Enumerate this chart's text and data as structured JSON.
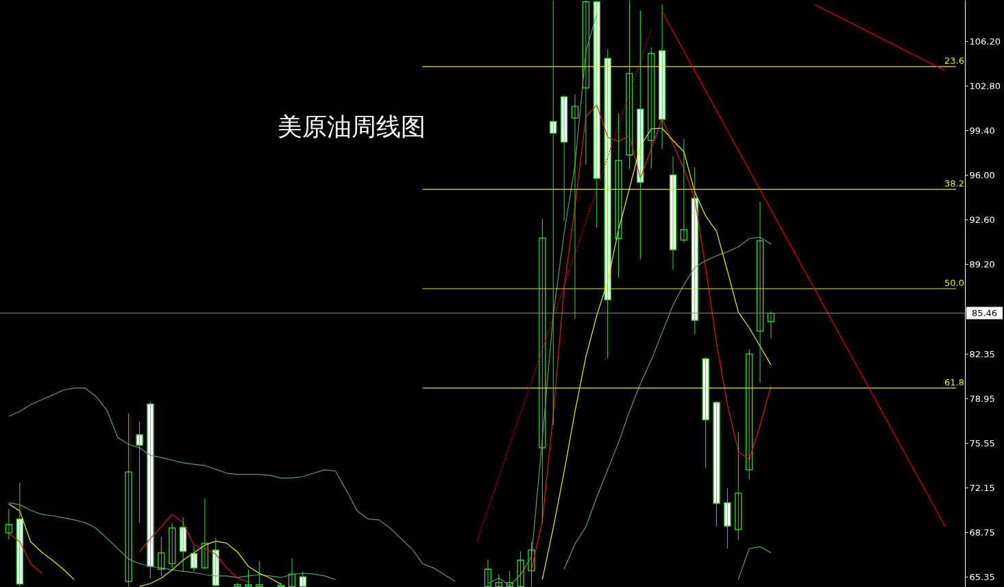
{
  "chart_data": {
    "type": "candlestick",
    "title": "美原油周线图",
    "categories": [
      null,
      null,
      null,
      null,
      null,
      null,
      null,
      null,
      null,
      null,
      null,
      null,
      null,
      null,
      null,
      null,
      null,
      null,
      null,
      null,
      null,
      null,
      null,
      null,
      null,
      null,
      null,
      null,
      null,
      null,
      null,
      null,
      null,
      null,
      null,
      null,
      null,
      null,
      null,
      null,
      null,
      null,
      null,
      null,
      null,
      null,
      null,
      null,
      null,
      null,
      null,
      null,
      null,
      null,
      null,
      null,
      null,
      null,
      null,
      null,
      null,
      null,
      null,
      null,
      null,
      null,
      null,
      null,
      null,
      null,
      null,
      null,
      null,
      null,
      null,
      null,
      null,
      null,
      null,
      null,
      null,
      null,
      null,
      null,
      null,
      null,
      null,
      null
    ],
    "series": [
      {
        "type": "line",
        "color": "#5f9a70",
        "values": [
          77.59,
          77.96,
          78.48,
          78.85,
          79.21,
          79.58,
          79.74,
          79.74,
          79.11,
          78.06,
          75.97,
          75.45,
          75.19,
          74.61,
          74.45,
          74.24,
          74.04,
          73.93,
          73.83,
          73.56,
          73.25,
          73.15,
          73.15,
          73.15,
          73.09,
          72.88,
          72.88,
          72.99,
          73.25,
          73.51,
          73.41,
          71.94,
          70.37,
          69.75,
          69.69,
          69.07,
          68.28,
          67.5,
          66.35,
          66.03,
          65.51,
          64.99,
          null,
          null,
          64.83,
          65.25,
          64.67,
          65.51,
          66.87,
          75.87,
          85.29,
          91.56,
          96.79,
          105.42,
          108.29,
          null,
          null,
          null,
          null,
          null,
          null,
          null,
          null,
          null,
          null,
          null,
          null,
          null,
          null,
          null,
          null,
          null,
          null,
          null,
          null,
          null,
          null,
          null,
          null,
          null,
          null,
          null,
          null,
          null,
          null,
          null,
          null,
          null
        ]
      },
      {
        "type": "line",
        "color": "#5f9a70",
        "values": [
          71.0,
          70.84,
          70.43,
          70.11,
          70.01,
          69.85,
          69.69,
          69.48,
          69.07,
          68.28,
          67.5,
          66.71,
          66.35,
          66.14,
          66.03,
          65.88,
          65.77,
          65.67,
          65.51,
          65.41,
          65.41,
          65.3,
          65.41,
          65.51,
          65.41,
          65.3,
          65.51,
          65.62,
          65.56,
          65.41,
          65.14,
          null,
          null,
          null,
          null,
          null,
          null,
          null,
          null,
          null,
          null,
          null,
          null,
          null,
          null,
          null,
          null,
          null,
          null,
          null,
          null,
          65.93,
          67.86,
          69.17,
          71.42,
          73.51,
          75.6,
          77.96,
          80.05,
          81.88,
          83.97,
          86.06,
          87.63,
          88.94,
          89.46,
          89.83,
          90.14,
          90.51,
          91.14,
          91.24,
          90.72,
          null,
          null,
          null,
          null,
          null,
          null,
          null,
          null,
          null,
          null,
          null,
          null,
          null,
          null,
          null,
          null,
          null
        ]
      },
      {
        "type": "line",
        "color": "#5f9a70",
        "values": [
          null,
          null,
          null,
          null,
          null,
          null,
          null,
          null,
          null,
          null,
          null,
          null,
          null,
          null,
          null,
          null,
          null,
          null,
          null,
          null,
          null,
          null,
          null,
          null,
          null,
          null,
          null,
          null,
          null,
          null,
          null,
          null,
          null,
          null,
          null,
          null,
          null,
          null,
          null,
          null,
          null,
          null,
          null,
          null,
          null,
          null,
          null,
          null,
          null,
          null,
          null,
          null,
          null,
          null,
          null,
          null,
          null,
          null,
          null,
          null,
          null,
          null,
          null,
          null,
          null,
          null,
          null,
          65.14,
          67.5,
          67.65,
          67.18,
          null,
          null,
          null,
          null,
          null,
          null,
          null,
          null,
          null,
          null,
          null,
          null,
          null,
          null,
          null,
          null,
          null
        ]
      },
      {
        "type": "line",
        "color": "#d42020",
        "values": [
          68.65,
          68.02,
          66.35,
          65.62,
          null,
          null,
          null,
          null,
          null,
          null,
          null,
          null,
          67.24,
          68.28,
          69.17,
          70.11,
          69.48,
          67.76,
          67.5,
          67.08,
          66.03,
          65.25,
          64.94,
          null,
          null,
          null,
          null,
          null,
          null,
          null,
          null,
          null,
          null,
          null,
          null,
          null,
          null,
          null,
          null,
          null,
          null,
          null,
          null,
          null,
          null,
          null,
          null,
          null,
          65.93,
          69.59,
          77.7,
          87.37,
          93.65,
          100.45,
          101.34,
          98.88,
          98.56,
          98.98,
          95.74,
          97.99,
          100.29,
          98.35,
          96.47,
          94.17,
          88.94,
          83.19,
          78.48,
          74.92,
          74.3,
          76.91,
          79.89,
          null,
          null,
          null,
          null,
          null,
          null,
          null,
          null,
          null,
          null,
          null,
          null,
          null,
          null,
          null,
          null,
          null
        ]
      },
      {
        "type": "line",
        "color": "#f0f020",
        "values": [
          70.9,
          70.37,
          68.02,
          67.24,
          66.61,
          65.93,
          65.14,
          null,
          null,
          null,
          null,
          null,
          64.62,
          64.83,
          65.25,
          65.88,
          66.61,
          67.18,
          67.76,
          68.07,
          67.91,
          67.24,
          66.14,
          65.62,
          65.25,
          64.78,
          null,
          null,
          null,
          null,
          null,
          null,
          null,
          null,
          null,
          null,
          null,
          null,
          null,
          null,
          null,
          null,
          null,
          null,
          null,
          null,
          null,
          null,
          null,
          65.14,
          69.07,
          73.35,
          77.96,
          82.14,
          85.28,
          87.89,
          91.82,
          94.96,
          98.2,
          99.51,
          99.56,
          98.62,
          97.78,
          94.69,
          92.86,
          91.71,
          88.68,
          85.54,
          84.34,
          82.93,
          81.51,
          null,
          null,
          null,
          null,
          null,
          null,
          null,
          null,
          null,
          null,
          null,
          null,
          null,
          null,
          null,
          null,
          null
        ]
      },
      {
        "type": "line",
        "name": "23.6",
        "color": "#e8e840",
        "values": [
          null,
          null,
          null,
          null,
          null,
          null,
          null,
          null,
          null,
          null,
          null,
          null,
          null,
          null,
          null,
          null,
          null,
          null,
          null,
          null,
          null,
          null,
          null,
          null,
          null,
          null,
          null,
          null,
          null,
          null,
          null,
          null,
          null,
          null,
          null,
          null,
          null,
          null,
          104.26,
          104.26,
          104.26,
          104.26,
          104.26,
          104.26,
          104.26,
          104.26,
          104.26,
          104.26,
          104.26,
          104.26,
          104.26,
          104.26,
          104.26,
          104.26,
          104.26,
          104.26,
          104.26,
          104.26,
          104.26,
          104.26,
          104.26,
          104.26,
          104.26,
          104.26,
          104.26,
          104.26,
          104.26,
          104.26,
          104.26,
          104.26,
          104.26,
          104.26,
          104.26,
          104.26,
          104.26,
          104.26,
          104.26,
          104.26,
          104.26,
          104.26,
          104.26,
          104.26,
          104.26,
          104.26,
          104.26,
          104.26,
          104.26,
          104.26
        ]
      },
      {
        "type": "line",
        "name": "38.2",
        "color": "#e8e840",
        "values": [
          null,
          null,
          null,
          null,
          null,
          null,
          null,
          null,
          null,
          null,
          null,
          null,
          null,
          null,
          null,
          null,
          null,
          null,
          null,
          null,
          null,
          null,
          null,
          null,
          null,
          null,
          null,
          null,
          null,
          null,
          null,
          null,
          null,
          null,
          null,
          null,
          null,
          null,
          94.9,
          94.9,
          94.9,
          94.9,
          94.9,
          94.9,
          94.9,
          94.9,
          94.9,
          94.9,
          94.9,
          94.9,
          94.9,
          94.9,
          94.9,
          94.9,
          94.9,
          94.9,
          94.9,
          94.9,
          94.9,
          94.9,
          94.9,
          94.9,
          94.9,
          94.9,
          94.9,
          94.9,
          94.9,
          94.9,
          94.9,
          94.9,
          94.9,
          94.9,
          94.9,
          94.9,
          94.9,
          94.9,
          94.9,
          94.9,
          94.9,
          94.9,
          94.9,
          94.9,
          94.9,
          94.9,
          94.9,
          94.9,
          94.9,
          94.9
        ]
      },
      {
        "type": "line",
        "name": "50.0",
        "color": "#e8e840",
        "values": [
          null,
          null,
          null,
          null,
          null,
          null,
          null,
          null,
          null,
          null,
          null,
          null,
          null,
          null,
          null,
          null,
          null,
          null,
          null,
          null,
          null,
          null,
          null,
          null,
          null,
          null,
          null,
          null,
          null,
          null,
          null,
          null,
          null,
          null,
          null,
          null,
          null,
          null,
          87.32,
          87.32,
          87.32,
          87.32,
          87.32,
          87.32,
          87.32,
          87.32,
          87.32,
          87.32,
          87.32,
          87.32,
          87.32,
          87.32,
          87.32,
          87.32,
          87.32,
          87.32,
          87.32,
          87.32,
          87.32,
          87.32,
          87.32,
          87.32,
          87.32,
          87.32,
          87.32,
          87.32,
          87.32,
          87.32,
          87.32,
          87.32,
          87.32,
          87.32,
          87.32,
          87.32,
          87.32,
          87.32,
          87.32,
          87.32,
          87.32,
          87.32,
          87.32,
          87.32,
          87.32,
          87.32,
          87.32,
          87.32,
          87.32,
          87.32
        ]
      },
      {
        "type": "line",
        "name": "61.8",
        "color": "#e8e840",
        "values": [
          null,
          null,
          null,
          null,
          null,
          null,
          null,
          null,
          null,
          null,
          null,
          null,
          null,
          null,
          null,
          null,
          null,
          null,
          null,
          null,
          null,
          null,
          null,
          null,
          null,
          null,
          null,
          null,
          null,
          null,
          null,
          null,
          null,
          null,
          null,
          null,
          null,
          null,
          79.74,
          79.74,
          79.74,
          79.74,
          79.74,
          79.74,
          79.74,
          79.74,
          79.74,
          79.74,
          79.74,
          79.74,
          79.74,
          79.74,
          79.74,
          79.74,
          79.74,
          79.74,
          79.74,
          79.74,
          79.74,
          79.74,
          79.74,
          79.74,
          79.74,
          79.74,
          79.74,
          79.74,
          79.74,
          79.74,
          79.74,
          79.74,
          79.74,
          79.74,
          79.74,
          79.74,
          79.74,
          79.74,
          79.74,
          79.74,
          79.74,
          79.74,
          79.74,
          79.74,
          79.74,
          79.74,
          79.74,
          79.74,
          79.74,
          79.74
        ]
      },
      {
        "type": "line",
        "color": "#e00000",
        "line_style": "dotted",
        "values": [
          null,
          null,
          null,
          null,
          null,
          null,
          null,
          null,
          null,
          null,
          null,
          null,
          null,
          null,
          null,
          null,
          null,
          null,
          null,
          null,
          null,
          null,
          null,
          null,
          null,
          null,
          null,
          null,
          null,
          null,
          null,
          null,
          null,
          null,
          null,
          null,
          null,
          null,
          null,
          null,
          null,
          null,
          null,
          68.02,
          null,
          null,
          null,
          null,
          null,
          null,
          null,
          null,
          null,
          null,
          null,
          null,
          null,
          null,
          null,
          107.11,
          null,
          null,
          null,
          null,
          null,
          null,
          null,
          null,
          null,
          null,
          null,
          null,
          null,
          null,
          null,
          null,
          null,
          null,
          null,
          null,
          null,
          null,
          null,
          null,
          null,
          null,
          null,
          null
        ]
      },
      {
        "type": "line",
        "color": "#e00000",
        "values": [
          null,
          null,
          null,
          null,
          null,
          null,
          null,
          null,
          null,
          null,
          null,
          null,
          null,
          null,
          null,
          null,
          null,
          null,
          null,
          null,
          null,
          null,
          null,
          null,
          null,
          null,
          null,
          null,
          null,
          null,
          null,
          null,
          null,
          null,
          null,
          null,
          null,
          null,
          null,
          null,
          null,
          null,
          null,
          null,
          null,
          null,
          null,
          null,
          null,
          null,
          null,
          null,
          null,
          null,
          null,
          null,
          null,
          null,
          null,
          null,
          108.46,
          null,
          null,
          null,
          null,
          null,
          null,
          null,
          null,
          null,
          null,
          null,
          null,
          null,
          null,
          null,
          null,
          null,
          null,
          null,
          null,
          null,
          null,
          null,
          null,
          null,
          69.17,
          null
        ]
      },
      {
        "type": "line",
        "color": "#e00000",
        "values": [
          null,
          null,
          null,
          null,
          null,
          null,
          null,
          null,
          null,
          null,
          null,
          null,
          null,
          null,
          null,
          null,
          null,
          null,
          null,
          null,
          null,
          null,
          null,
          null,
          null,
          null,
          null,
          null,
          null,
          null,
          null,
          null,
          null,
          null,
          null,
          null,
          null,
          null,
          null,
          null,
          null,
          null,
          null,
          null,
          null,
          null,
          null,
          null,
          null,
          null,
          null,
          null,
          null,
          null,
          null,
          null,
          null,
          null,
          null,
          null,
          null,
          null,
          null,
          null,
          null,
          null,
          null,
          null,
          null,
          null,
          null,
          null,
          null,
          null,
          109.0,
          null,
          null,
          null,
          null,
          null,
          null,
          null,
          null,
          null,
          null,
          null,
          103.95,
          null
        ]
      },
      {
        "type": "candlestick",
        "color": "#33dd33",
        "ohlc": [
          [
            68.7,
            70.53,
            68.18,
            69.33
          ],
          [
            69.75,
            72.52,
            64.6,
            64.8
          ],
          null,
          null,
          null,
          null,
          null,
          null,
          null,
          null,
          null,
          [
            64.99,
            77.8,
            64.6,
            73.35
          ],
          [
            76.18,
            77.17,
            69.48,
            75.39
          ],
          [
            78.53,
            78.69,
            65.25,
            66.14
          ],
          [
            65.93,
            68.39,
            65.41,
            67.18
          ],
          [
            66.35,
            69.43,
            66.0,
            69.07
          ],
          [
            69.12,
            69.9,
            65.72,
            67.29
          ],
          [
            67.13,
            67.65,
            65.77,
            66.03
          ],
          [
            66.03,
            71.32,
            65.93,
            67.91
          ],
          [
            67.39,
            68.33,
            64.6,
            64.7
          ],
          null,
          [
            64.6,
            64.9,
            64.6,
            64.75
          ],
          [
            64.6,
            65.88,
            64.6,
            64.75
          ],
          [
            64.6,
            66.56,
            64.6,
            64.75
          ],
          null,
          [
            64.6,
            64.88,
            64.6,
            64.7
          ],
          [
            64.6,
            66.77,
            64.6,
            65.56
          ],
          [
            65.35,
            65.72,
            64.6,
            64.62
          ],
          null,
          null,
          null,
          null,
          null,
          null,
          null,
          null,
          null,
          null,
          null,
          null,
          null,
          null,
          null,
          null,
          [
            64.6,
            66.66,
            64.6,
            65.93
          ],
          [
            64.6,
            65.57,
            64.6,
            64.9
          ],
          [
            64.6,
            65.78,
            64.6,
            64.9
          ],
          [
            64.6,
            67.29,
            64.6,
            66.61
          ],
          [
            65.82,
            68.02,
            64.6,
            67.39
          ],
          [
            75.19,
            92.65,
            69.43,
            91.19
          ],
          [
            100.08,
            109.3,
            76.91,
            99.19
          ],
          [
            101.96,
            102.07,
            92.5,
            98.51
          ],
          [
            100.34,
            102.12,
            85.02,
            101.23
          ],
          [
            102.64,
            109.3,
            96.79,
            109.2
          ],
          [
            109.2,
            109.3,
            91.97,
            95.74
          ],
          [
            104.89,
            105.57,
            82.04,
            86.48
          ],
          [
            91.14,
            100.71,
            88.16,
            97.1
          ],
          [
            97.52,
            109.3,
            96.47,
            103.74
          ],
          [
            101.02,
            108.55,
            89.57,
            95.43
          ],
          [
            98.62,
            105.73,
            96.47,
            105.26
          ],
          [
            105.47,
            108.97,
            97.99,
            100.24
          ],
          [
            96.0,
            97.41,
            88.78,
            90.3
          ],
          [
            91.03,
            98.72,
            90.82,
            91.82
          ],
          [
            94.22,
            96.58,
            83.87,
            84.91
          ],
          [
            81.98,
            82.09,
            73.67,
            77.33
          ],
          [
            78.64,
            78.74,
            69.22,
            70.95
          ],
          [
            71.0,
            72.1,
            67.5,
            69.22
          ],
          [
            68.96,
            76.39,
            68.18,
            71.73
          ],
          [
            73.51,
            82.72,
            72.78,
            82.35
          ],
          [
            84.08,
            93.96,
            80.15,
            90.98
          ],
          [
            84.81,
            85.59,
            83.5,
            85.46
          ],
          null,
          null,
          null,
          null,
          null,
          null,
          null,
          null,
          null,
          null,
          null,
          null,
          null,
          null,
          null,
          null,
          null
        ]
      }
    ],
    "ref_lines": [
      {
        "axis": "y",
        "value": 85.46,
        "label": "85.46",
        "color": "#8c8c8c"
      }
    ],
    "ylim": [
      64.57,
      109.34
    ],
    "yticks": [
      {
        "value": 65.35,
        "label": "65.35"
      },
      {
        "value": 68.75,
        "label": "68.75"
      },
      {
        "value": 72.15,
        "label": "72.15"
      },
      {
        "value": 75.55,
        "label": "75.55"
      },
      {
        "value": 78.95,
        "label": "78.95"
      },
      {
        "value": 82.35,
        "label": "82.35"
      },
      {
        "value": 85.75,
        "label": null
      },
      {
        "value": 89.2,
        "label": "89.20"
      },
      {
        "value": 92.6,
        "label": "92.60"
      },
      {
        "value": 96.0,
        "label": "96.00"
      },
      {
        "value": 99.4,
        "label": "99.40"
      },
      {
        "value": 102.8,
        "label": "102.80"
      },
      {
        "value": 106.2,
        "label": "106.20"
      }
    ],
    "grid": false,
    "tick_labels": "y"
  }
}
